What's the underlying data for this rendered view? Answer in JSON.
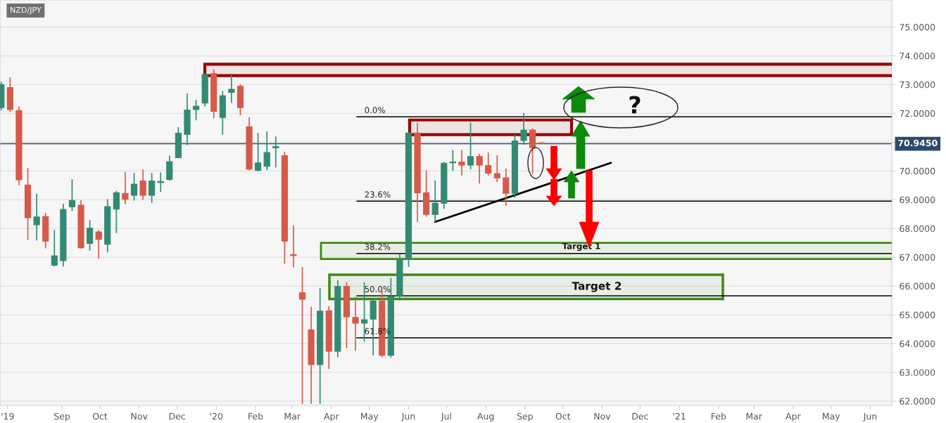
{
  "chart_data": {
    "type": "candlestick",
    "title": "NZD/JPY",
    "xlim": [
      "2019-07-14",
      "2021-06-18"
    ],
    "ylim": [
      61.85,
      75.94
    ],
    "xticks": [
      {
        "value": "2019-07-20",
        "label": "'19"
      },
      {
        "value": "2019-09-01",
        "label": "Sep"
      },
      {
        "value": "2019-10-01",
        "label": "Oct"
      },
      {
        "value": "2019-11-01",
        "label": "Nov"
      },
      {
        "value": "2019-12-01",
        "label": "Dec"
      },
      {
        "value": "2020-01-01",
        "label": "'20"
      },
      {
        "value": "2020-02-01",
        "label": "Feb"
      },
      {
        "value": "2020-03-01",
        "label": "Mar"
      },
      {
        "value": "2020-04-01",
        "label": "Apr"
      },
      {
        "value": "2020-05-01",
        "label": "May"
      },
      {
        "value": "2020-06-01",
        "label": "Jun"
      },
      {
        "value": "2020-07-01",
        "label": "Jul"
      },
      {
        "value": "2020-08-01",
        "label": "Aug"
      },
      {
        "value": "2020-09-01",
        "label": "Sep"
      },
      {
        "value": "2020-10-01",
        "label": "Oct"
      },
      {
        "value": "2020-11-01",
        "label": "Nov"
      },
      {
        "value": "2020-12-01",
        "label": "Dec"
      },
      {
        "value": "2021-01-01",
        "label": "'21"
      },
      {
        "value": "2021-02-01",
        "label": "Feb"
      },
      {
        "value": "2021-03-01",
        "label": "Mar"
      },
      {
        "value": "2021-04-01",
        "label": "Apr"
      },
      {
        "value": "2021-05-01",
        "label": "May"
      },
      {
        "value": "2021-06-01",
        "label": "Jun"
      }
    ],
    "yticks": [
      {
        "value": 62,
        "label": "62.0000"
      },
      {
        "value": 63,
        "label": "63.0000"
      },
      {
        "value": 64,
        "label": "64.0000"
      },
      {
        "value": 65,
        "label": "65.0000"
      },
      {
        "value": 66,
        "label": "66.0000"
      },
      {
        "value": 67,
        "label": "67.0000"
      },
      {
        "value": 68,
        "label": "68.0000"
      },
      {
        "value": 69,
        "label": "69.0000"
      },
      {
        "value": 70,
        "label": "70.0000"
      },
      {
        "value": 71,
        "label": null
      },
      {
        "value": 72,
        "label": "72.0000"
      },
      {
        "value": 73,
        "label": "73.0000"
      },
      {
        "value": 74,
        "label": "74.0000"
      },
      {
        "value": 75,
        "label": "75.0000"
      }
    ],
    "grid": "y",
    "series": [
      {
        "x": [
          "2019-07-15",
          "2019-07-22",
          "2019-07-29",
          "2019-08-05",
          "2019-08-12",
          "2019-08-19",
          "2019-08-26",
          "2019-09-02",
          "2019-09-09",
          "2019-09-16",
          "2019-09-23",
          "2019-09-30",
          "2019-10-07",
          "2019-10-14",
          "2019-10-21",
          "2019-10-28",
          "2019-11-04",
          "2019-11-11",
          "2019-11-18",
          "2019-11-25",
          "2019-12-02",
          "2019-12-09",
          "2019-12-16",
          "2019-12-23",
          "2019-12-30",
          "2020-01-06",
          "2020-01-13",
          "2020-01-20",
          "2020-01-27",
          "2020-02-03",
          "2020-02-10",
          "2020-02-17",
          "2020-02-24",
          "2020-03-02",
          "2020-03-09",
          "2020-03-16",
          "2020-03-23",
          "2020-03-30",
          "2020-04-06",
          "2020-04-13",
          "2020-04-20",
          "2020-04-27",
          "2020-05-04",
          "2020-05-11",
          "2020-05-18",
          "2020-05-25",
          "2020-06-01",
          "2020-06-08",
          "2020-06-15",
          "2020-06-22",
          "2020-06-29",
          "2020-07-06",
          "2020-07-13",
          "2020-07-20",
          "2020-07-27",
          "2020-08-03",
          "2020-08-10",
          "2020-08-17",
          "2020-08-24",
          "2020-08-31",
          "2020-09-07",
          "2020-09-14"
        ],
        "ohlc": [
          [
            72.2,
            73.1,
            72.1,
            73.0
          ],
          [
            72.9,
            73.25,
            72.05,
            72.13
          ],
          [
            72.1,
            72.24,
            69.5,
            69.69
          ],
          [
            69.51,
            70.1,
            67.6,
            68.37
          ],
          [
            68.13,
            69.2,
            67.58,
            68.4
          ],
          [
            68.41,
            68.54,
            67.31,
            67.56
          ],
          [
            66.72,
            67.95,
            66.68,
            67.05
          ],
          [
            66.88,
            68.86,
            66.68,
            68.66
          ],
          [
            68.75,
            69.71,
            68.6,
            68.97
          ],
          [
            68.81,
            68.98,
            67.3,
            67.33
          ],
          [
            67.48,
            68.29,
            67.23,
            68.01
          ],
          [
            67.88,
            67.95,
            66.95,
            67.62
          ],
          [
            67.45,
            69.02,
            67.17,
            68.76
          ],
          [
            68.67,
            69.31,
            67.84,
            69.24
          ],
          [
            69.22,
            69.97,
            68.84,
            69.01
          ],
          [
            69.15,
            69.93,
            68.97,
            69.54
          ],
          [
            69.65,
            70.05,
            69.0,
            69.15
          ],
          [
            69.15,
            69.93,
            68.89,
            69.65
          ],
          [
            69.6,
            69.95,
            69.27,
            69.62
          ],
          [
            69.7,
            70.53,
            69.66,
            70.32
          ],
          [
            70.46,
            71.52,
            70.46,
            71.31
          ],
          [
            71.27,
            72.69,
            70.89,
            72.12
          ],
          [
            72.13,
            72.47,
            71.76,
            72.25
          ],
          [
            72.36,
            73.38,
            72.24,
            73.35
          ],
          [
            73.38,
            73.52,
            71.83,
            72.07
          ],
          [
            71.86,
            72.78,
            71.26,
            72.61
          ],
          [
            72.73,
            73.38,
            72.36,
            72.84
          ],
          [
            72.94,
            73.01,
            71.93,
            72.2
          ],
          [
            71.54,
            71.86,
            70.02,
            70.06
          ],
          [
            70.02,
            71.32,
            69.98,
            70.28
          ],
          [
            70.16,
            71.37,
            70.03,
            70.64
          ],
          [
            70.8,
            71.2,
            70.12,
            70.85
          ],
          [
            70.53,
            70.67,
            66.77,
            67.56
          ],
          [
            67.08,
            68.1,
            66.65,
            67.06
          ],
          [
            65.77,
            66.66,
            61.9,
            65.54
          ],
          [
            64.48,
            65.28,
            61.9,
            63.27
          ],
          [
            63.27,
            65.93,
            61.9,
            65.13
          ],
          [
            65.14,
            65.3,
            63.12,
            63.73
          ],
          [
            63.73,
            66.2,
            63.53,
            65.99
          ],
          [
            65.99,
            66.14,
            63.84,
            64.93
          ],
          [
            64.91,
            65.62,
            63.75,
            64.71
          ],
          [
            64.71,
            66.13,
            64.06,
            64.83
          ],
          [
            64.85,
            65.56,
            63.59,
            65.48
          ],
          [
            65.48,
            65.83,
            63.53,
            63.59
          ],
          [
            63.59,
            66.28,
            63.51,
            65.63
          ],
          [
            65.66,
            67.13,
            65.5,
            66.92
          ],
          [
            66.92,
            71.35,
            66.66,
            71.32
          ],
          [
            71.32,
            71.68,
            68.23,
            69.24
          ],
          [
            69.24,
            70.02,
            68.41,
            68.49
          ],
          [
            68.49,
            69.67,
            68.23,
            68.88
          ],
          [
            68.88,
            70.31,
            68.68,
            70.27
          ],
          [
            70.28,
            70.73,
            70.0,
            70.31
          ],
          [
            70.31,
            70.73,
            69.84,
            70.2
          ],
          [
            70.2,
            71.68,
            70.06,
            70.5
          ],
          [
            70.5,
            70.59,
            69.56,
            70.2
          ],
          [
            70.19,
            70.64,
            69.84,
            69.92
          ],
          [
            69.91,
            70.54,
            69.61,
            69.76
          ],
          [
            69.76,
            70.08,
            68.78,
            69.22
          ],
          [
            69.22,
            71.26,
            69.06,
            71.04
          ],
          [
            71.06,
            72.01,
            70.91,
            71.42
          ],
          [
            71.42,
            71.48,
            69.9,
            70.81
          ],
          [
            70.97,
            70.99,
            70.94,
            70.945
          ]
        ],
        "colors": [
          "#338a72",
          "#d65a4a",
          "#d65a4a",
          "#d65a4a",
          "#338a72",
          "#d65a4a",
          "#338a72",
          "#338a72",
          "#338a72",
          "#d65a4a",
          "#338a72",
          "#d65a4a",
          "#338a72",
          "#338a72",
          "#d65a4a",
          "#338a72",
          "#d65a4a",
          "#338a72",
          "#338a72",
          "#338a72",
          "#338a72",
          "#338a72",
          "#338a72",
          "#338a72",
          "#d65a4a",
          "#338a72",
          "#338a72",
          "#d65a4a",
          "#d65a4a",
          "#338a72",
          "#338a72",
          "#338a72",
          "#d65a4a",
          "#d65a4a",
          "#d65a4a",
          "#d65a4a",
          "#338a72",
          "#d65a4a",
          "#338a72",
          "#d65a4a",
          "#d65a4a",
          "#338a72",
          "#338a72",
          "#d65a4a",
          "#338a72",
          "#338a72",
          "#338a72",
          "#d65a4a",
          "#d65a4a",
          "#338a72",
          "#338a72",
          "#338a72",
          "#d65a4a",
          "#338a72",
          "#d65a4a",
          "#d65a4a",
          "#d65a4a",
          "#d65a4a",
          "#338a72",
          "#338a72",
          "#d65a4a",
          "#d65a4a"
        ]
      },
      {
        "type": "line",
        "x": [
          "2020-06-22",
          "2020-11-08"
        ],
        "values": [
          68.23,
          70.28
        ],
        "color": "#000000"
      }
    ],
    "ref_lines": [
      {
        "axis": "y",
        "value": 70.945,
        "label": "70.9450",
        "color": "#2c4a6d"
      },
      {
        "axis": "y",
        "value": 71.88,
        "color": "#000000"
      },
      {
        "axis": "y",
        "value": 68.95,
        "color": "#000000"
      },
      {
        "axis": "y",
        "value": 67.13,
        "color": "#000000"
      },
      {
        "axis": "y",
        "value": 65.66,
        "color": "#000000"
      },
      {
        "axis": "y",
        "value": 64.2,
        "color": "#000000"
      }
    ],
    "bands": [
      {
        "axis": "y",
        "from": 73.31,
        "to": 73.71,
        "color": "#990000"
      },
      {
        "axis": "y",
        "from": 71.26,
        "to": 71.77,
        "color": "#990000"
      },
      {
        "axis": "y",
        "from": 66.94,
        "to": 67.5,
        "color": "#3a8a12",
        "label": "Target 1"
      },
      {
        "axis": "y",
        "from": 65.55,
        "to": 66.39,
        "color": "#3a8a12",
        "label": "Target 2"
      }
    ],
    "annotations": [
      "?",
      {
        "text": "0.0%",
        "x": "2020-04-27",
        "y": 71.88
      },
      {
        "text": "23.6%",
        "x": "2020-04-27",
        "y": 68.95
      },
      {
        "text": "38.2%",
        "x": "2020-04-27",
        "y": 67.13
      },
      {
        "text": "50.0%",
        "x": "2020-04-27",
        "y": 65.66
      },
      {
        "text": "61.8%",
        "x": "2020-04-27",
        "y": 64.2
      }
    ]
  }
}
